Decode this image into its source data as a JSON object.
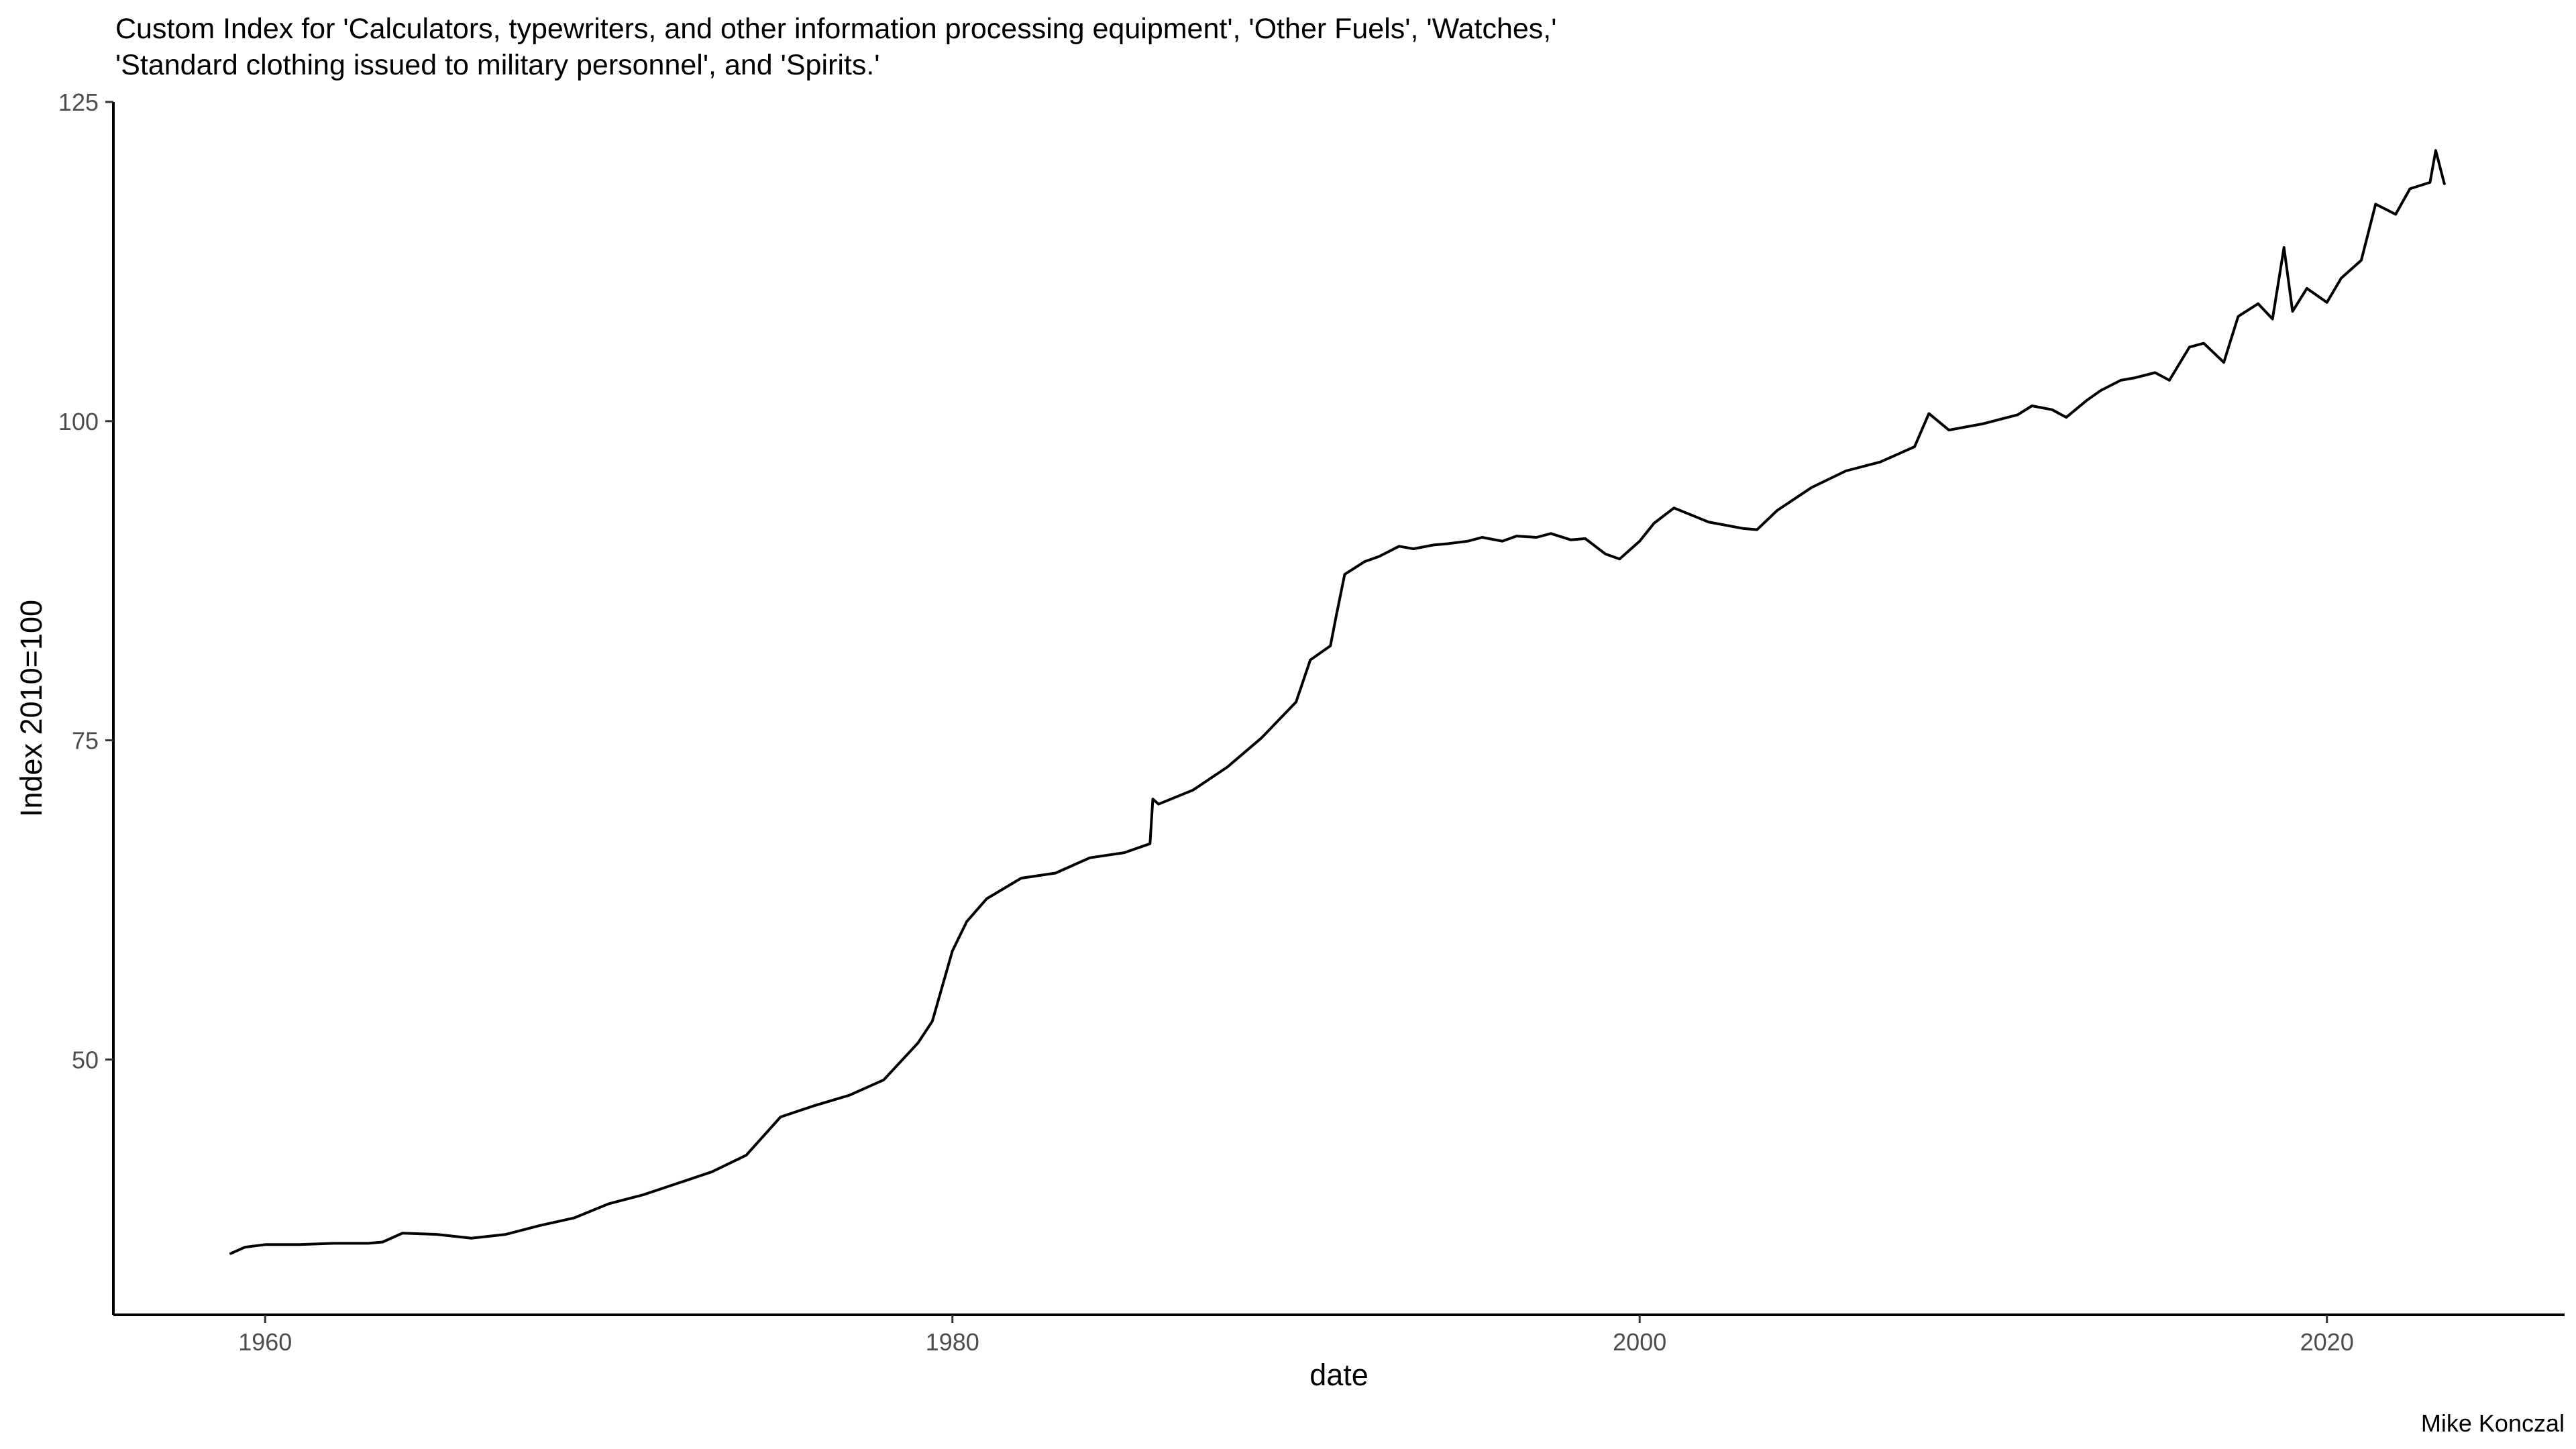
{
  "chart_data": {
    "type": "line",
    "title": "Custom Index for 'Calculators, typewriters, and other information processing equipment', 'Other Fuels', 'Watches,'",
    "title_line2": "'Standard clothing issued to military personnel', and 'Spirits.'",
    "xlabel": "date",
    "ylabel": "Index 2010=100",
    "caption": "Mike Konczal",
    "x_ticks": [
      "1960",
      "1980",
      "2000",
      "2020"
    ],
    "y_ticks": [
      "50",
      "75",
      "100",
      "125"
    ],
    "xlim": [
      "1955-08-01",
      "2026-12-01"
    ],
    "ylim": [
      30,
      125
    ],
    "grid": false,
    "legend": "none",
    "line_color": "#000000",
    "series": [
      {
        "x": [
          "1959-01",
          "1959-06",
          "1960-01",
          "1961-01",
          "1962-01",
          "1963-01",
          "1963-06",
          "1964-01",
          "1965-01",
          "1966-01",
          "1967-01",
          "1968-01",
          "1969-01",
          "1970-01",
          "1971-01",
          "1972-01",
          "1973-01",
          "1974-01",
          "1975-01",
          "1976-01",
          "1977-01",
          "1978-01",
          "1979-01",
          "1979-06",
          "1980-01",
          "1980-06",
          "1981-01",
          "1982-01",
          "1983-01",
          "1984-01",
          "1985-01",
          "1985-10",
          "1985-11",
          "1986-01",
          "1987-01",
          "1988-01",
          "1989-01",
          "1990-01",
          "1990-06",
          "1991-01",
          "1991-03",
          "1991-06",
          "1992-01",
          "1992-06",
          "1993-01",
          "1993-06",
          "1994-01",
          "1994-06",
          "1995-01",
          "1995-06",
          "1996-01",
          "1996-06",
          "1997-01",
          "1997-06",
          "1998-01",
          "1998-06",
          "1999-01",
          "1999-06",
          "2000-01",
          "2000-06",
          "2001-01",
          "2002-01",
          "2003-01",
          "2003-06",
          "2004-01",
          "2005-01",
          "2006-01",
          "2007-01",
          "2008-01",
          "2008-06",
          "2009-01",
          "2010-01",
          "2011-01",
          "2011-06",
          "2012-01",
          "2012-06",
          "2013-01",
          "2013-06",
          "2014-01",
          "2014-06",
          "2015-01",
          "2015-06",
          "2016-01",
          "2016-06",
          "2017-01",
          "2017-06",
          "2018-01",
          "2018-06",
          "2018-10",
          "2019-01",
          "2019-06",
          "2020-01",
          "2020-06",
          "2021-01",
          "2021-06",
          "2022-01",
          "2022-06",
          "2023-01",
          "2023-03",
          "2023-06"
        ],
        "y": [
          34.8,
          35.3,
          35.5,
          35.5,
          35.6,
          35.6,
          35.7,
          36.4,
          36.3,
          36.0,
          36.3,
          37.0,
          37.6,
          38.7,
          39.4,
          40.3,
          41.2,
          42.5,
          45.5,
          46.4,
          47.2,
          48.4,
          51.3,
          53.0,
          58.5,
          60.8,
          62.6,
          64.2,
          64.6,
          65.8,
          66.2,
          66.9,
          70.4,
          70.0,
          71.1,
          72.9,
          75.2,
          78.0,
          81.3,
          82.4,
          84.7,
          88.0,
          89.0,
          89.4,
          90.2,
          90.0,
          90.3,
          90.4,
          90.6,
          90.9,
          90.6,
          91.0,
          90.9,
          91.2,
          90.7,
          90.8,
          89.6,
          89.2,
          90.6,
          92.0,
          93.2,
          92.1,
          91.6,
          91.5,
          93.0,
          94.8,
          96.1,
          96.8,
          98.0,
          100.6,
          99.3,
          99.8,
          100.5,
          101.2,
          100.9,
          100.3,
          101.6,
          102.4,
          103.2,
          103.4,
          103.8,
          103.2,
          105.8,
          106.1,
          104.6,
          108.2,
          109.2,
          108.0,
          113.6,
          108.6,
          110.4,
          109.3,
          111.2,
          112.6,
          117.0,
          116.2,
          118.2,
          118.7,
          121.2,
          118.6
        ]
      }
    ]
  }
}
